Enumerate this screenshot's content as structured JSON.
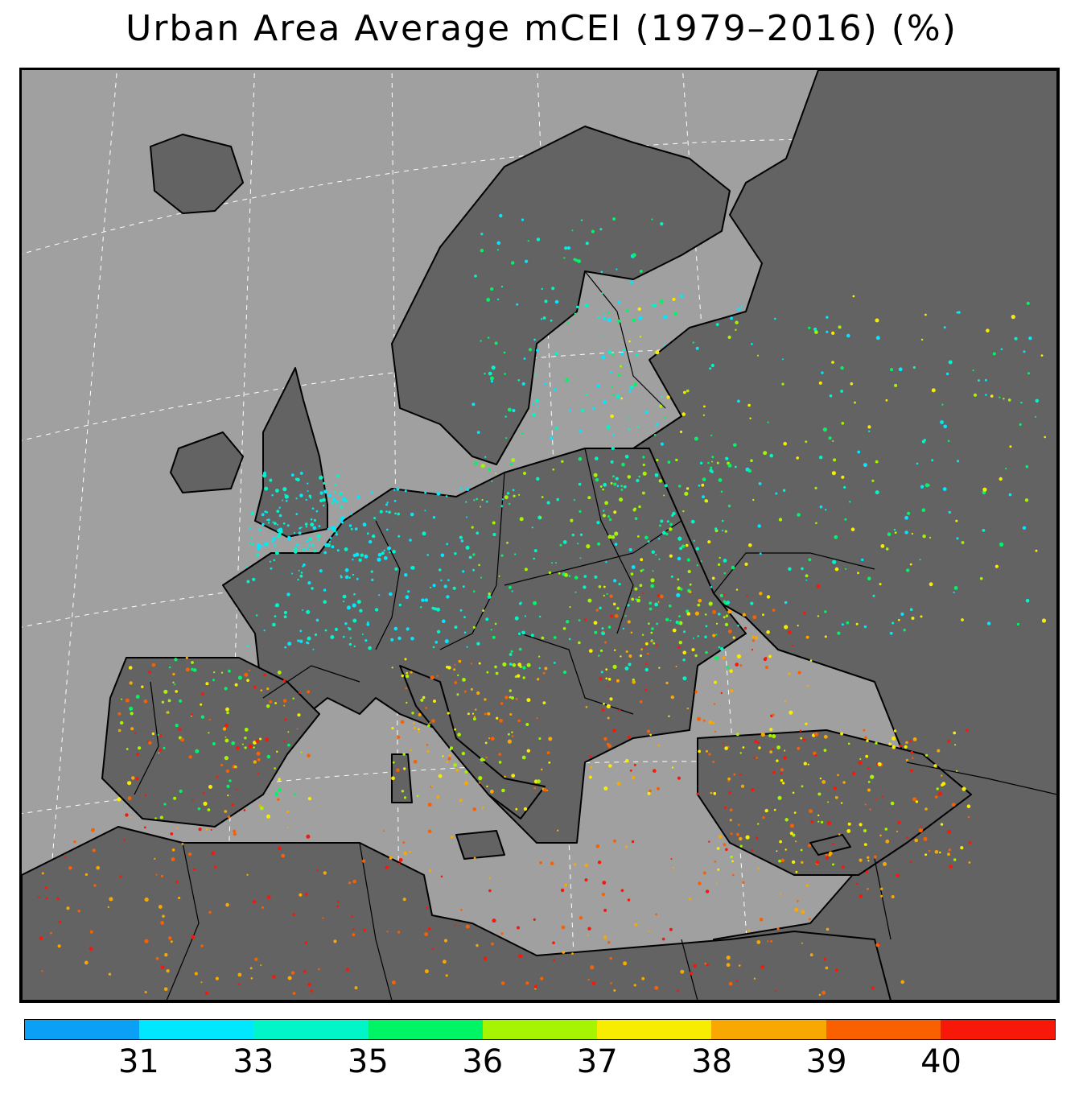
{
  "title": "Urban Area Average mCEI (1979–2016) (%)",
  "colors": {
    "sea": "#a0a0a0",
    "land": "#636363",
    "coast": "#000000",
    "grid": "#ffffff"
  },
  "colorbar": {
    "colors": [
      "#0aa0f5",
      "#00e8ff",
      "#00f5c8",
      "#00f566",
      "#a6f500",
      "#f8ed00",
      "#f8a800",
      "#f86000",
      "#f8180a"
    ],
    "tick_labels": [
      "31",
      "33",
      "35",
      "36",
      "37",
      "38",
      "39",
      "40"
    ]
  }
}
